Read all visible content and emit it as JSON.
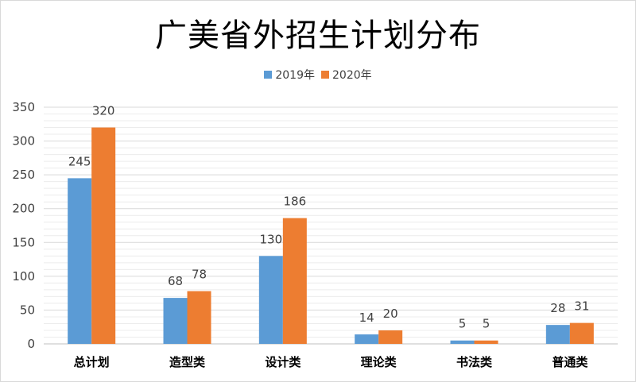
{
  "chart_data": {
    "type": "bar",
    "title": "广美省外招生计划分布",
    "categories": [
      "总计划",
      "造型类",
      "设计类",
      "理论类",
      "书法类",
      "普通类"
    ],
    "series": [
      {
        "name": "2019年",
        "color": "#5B9BD5",
        "values": [
          245,
          68,
          130,
          14,
          5,
          28
        ]
      },
      {
        "name": "2020年",
        "color": "#ED7D31",
        "values": [
          320,
          78,
          186,
          20,
          5,
          31
        ]
      }
    ],
    "ylim": [
      0,
      350
    ],
    "yticks": [
      0,
      50,
      100,
      150,
      200,
      250,
      300,
      350
    ],
    "grid": true,
    "legend_position": "top",
    "data_labels": true,
    "xlabel": "",
    "ylabel": ""
  }
}
